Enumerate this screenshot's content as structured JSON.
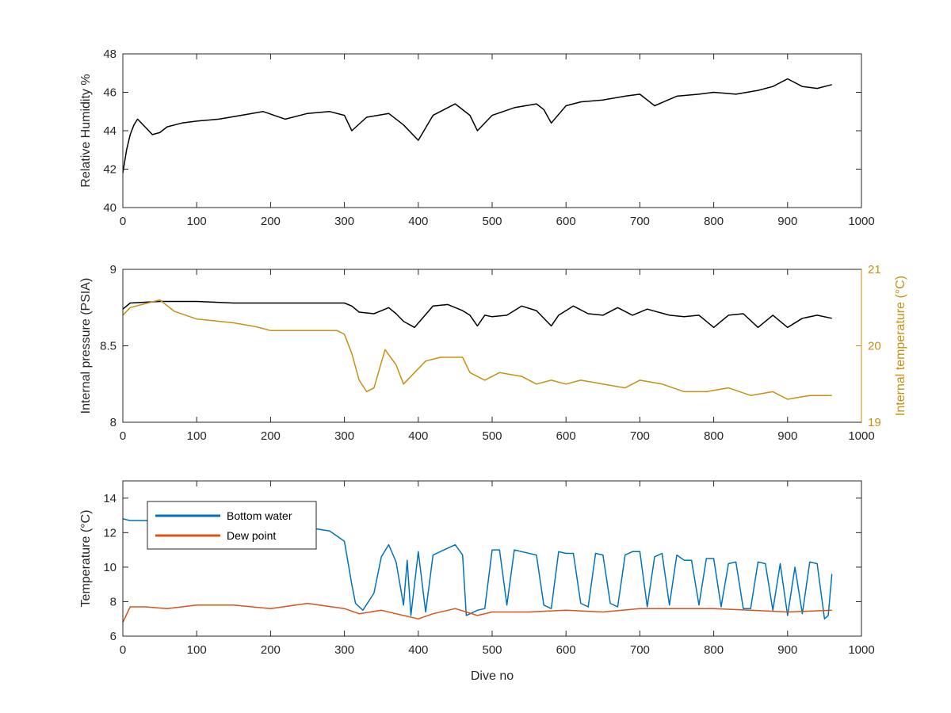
{
  "chart_data": [
    {
      "type": "line",
      "xlabel": "",
      "ylabel": "Relative Humidity %",
      "xlim": [
        0,
        1000
      ],
      "ylim": [
        40,
        48
      ],
      "xticks": [
        "0",
        "100",
        "200",
        "300",
        "400",
        "500",
        "600",
        "700",
        "800",
        "900",
        "1000"
      ],
      "yticks": [
        "40",
        "42",
        "44",
        "46",
        "48"
      ],
      "series": [
        {
          "name": "",
          "color": "#000000",
          "x": [
            0,
            5,
            10,
            15,
            20,
            30,
            40,
            50,
            60,
            80,
            100,
            130,
            160,
            190,
            220,
            250,
            280,
            300,
            310,
            330,
            360,
            380,
            400,
            420,
            450,
            470,
            480,
            500,
            530,
            560,
            570,
            580,
            600,
            620,
            650,
            680,
            700,
            720,
            750,
            780,
            800,
            830,
            860,
            880,
            900,
            920,
            940,
            960
          ],
          "y": [
            41.8,
            43.0,
            43.8,
            44.3,
            44.6,
            44.2,
            43.8,
            43.9,
            44.2,
            44.4,
            44.5,
            44.6,
            44.8,
            45.0,
            44.6,
            44.9,
            45.0,
            44.8,
            44.0,
            44.7,
            44.9,
            44.3,
            43.5,
            44.8,
            45.4,
            44.8,
            44.0,
            44.8,
            45.2,
            45.4,
            45.1,
            44.4,
            45.3,
            45.5,
            45.6,
            45.8,
            45.9,
            45.3,
            45.8,
            45.9,
            46.0,
            45.9,
            46.1,
            46.3,
            46.7,
            46.3,
            46.2,
            46.4
          ]
        }
      ]
    },
    {
      "type": "line",
      "xlabel": "",
      "ylabel": "Internal pressure (PSIA)",
      "ylabel_right": "Internal temperature (°C)",
      "xlim": [
        0,
        1000
      ],
      "ylim": [
        8,
        9
      ],
      "ylim_right": [
        19,
        21
      ],
      "xticks": [
        "0",
        "100",
        "200",
        "300",
        "400",
        "500",
        "600",
        "700",
        "800",
        "900",
        "1000"
      ],
      "yticks": [
        "8",
        "8.5",
        "9"
      ],
      "yticks_right": [
        "19",
        "20",
        "21"
      ],
      "series": [
        {
          "name": "",
          "axis": "left",
          "color": "#000000",
          "x": [
            0,
            10,
            50,
            100,
            150,
            200,
            250,
            300,
            310,
            320,
            340,
            360,
            370,
            380,
            395,
            420,
            440,
            460,
            470,
            480,
            490,
            500,
            520,
            540,
            560,
            580,
            590,
            610,
            630,
            650,
            670,
            690,
            710,
            740,
            760,
            780,
            800,
            820,
            840,
            860,
            880,
            900,
            920,
            940,
            960
          ],
          "y": [
            8.74,
            8.78,
            8.79,
            8.79,
            8.78,
            8.78,
            8.78,
            8.78,
            8.76,
            8.72,
            8.71,
            8.75,
            8.71,
            8.66,
            8.62,
            8.76,
            8.77,
            8.73,
            8.7,
            8.63,
            8.7,
            8.69,
            8.7,
            8.76,
            8.73,
            8.63,
            8.7,
            8.76,
            8.71,
            8.7,
            8.75,
            8.7,
            8.74,
            8.7,
            8.69,
            8.7,
            8.62,
            8.7,
            8.71,
            8.62,
            8.7,
            8.62,
            8.68,
            8.7,
            8.68
          ]
        },
        {
          "name": "",
          "axis": "right",
          "color": "#c88f12",
          "x": [
            0,
            10,
            30,
            50,
            70,
            100,
            150,
            180,
            200,
            230,
            260,
            290,
            300,
            310,
            320,
            330,
            340,
            355,
            370,
            380,
            395,
            410,
            430,
            460,
            470,
            490,
            510,
            540,
            560,
            580,
            600,
            620,
            650,
            680,
            700,
            730,
            760,
            790,
            820,
            850,
            880,
            900,
            930,
            960
          ],
          "y": [
            20.4,
            20.5,
            20.55,
            20.6,
            20.45,
            20.35,
            20.3,
            20.25,
            20.2,
            20.2,
            20.2,
            20.2,
            20.15,
            19.9,
            19.55,
            19.4,
            19.45,
            19.95,
            19.75,
            19.5,
            19.65,
            19.8,
            19.85,
            19.85,
            19.65,
            19.55,
            19.65,
            19.6,
            19.5,
            19.55,
            19.5,
            19.55,
            19.5,
            19.45,
            19.55,
            19.5,
            19.4,
            19.4,
            19.45,
            19.35,
            19.4,
            19.3,
            19.35,
            19.35
          ]
        }
      ]
    },
    {
      "type": "line",
      "xlabel": "Dive no",
      "ylabel": "Temperature (°C)",
      "xlim": [
        0,
        1000
      ],
      "ylim": [
        6,
        15
      ],
      "xticks": [
        "0",
        "100",
        "200",
        "300",
        "400",
        "500",
        "600",
        "700",
        "800",
        "900",
        "1000"
      ],
      "yticks": [
        "6",
        "8",
        "10",
        "12",
        "14"
      ],
      "legend_position": "top-left",
      "series": [
        {
          "name": "Bottom water",
          "color": "#0072bd",
          "x": [
            0,
            10,
            50,
            100,
            150,
            200,
            250,
            280,
            300,
            310,
            315,
            325,
            340,
            350,
            360,
            370,
            380,
            385,
            390,
            400,
            410,
            420,
            450,
            460,
            465,
            480,
            490,
            500,
            510,
            520,
            530,
            540,
            560,
            570,
            580,
            590,
            600,
            610,
            620,
            630,
            640,
            650,
            660,
            670,
            680,
            690,
            700,
            710,
            720,
            730,
            740,
            750,
            760,
            770,
            780,
            790,
            800,
            810,
            820,
            830,
            840,
            850,
            860,
            870,
            880,
            890,
            900,
            910,
            920,
            930,
            940,
            950,
            955,
            960
          ],
          "y": [
            12.8,
            12.7,
            12.7,
            12.7,
            12.5,
            12.3,
            12.3,
            12.1,
            11.5,
            9.0,
            7.9,
            7.5,
            8.5,
            10.6,
            11.3,
            10.3,
            7.8,
            10.4,
            7.2,
            10.9,
            7.4,
            10.7,
            11.3,
            10.7,
            7.2,
            7.5,
            7.6,
            11.0,
            11.0,
            7.8,
            11.0,
            10.9,
            10.7,
            7.8,
            7.6,
            10.9,
            10.8,
            10.8,
            7.9,
            7.7,
            10.8,
            10.7,
            7.9,
            7.7,
            10.7,
            10.9,
            10.9,
            7.7,
            10.6,
            10.8,
            7.8,
            10.7,
            10.4,
            10.4,
            7.8,
            10.5,
            10.5,
            7.7,
            10.2,
            10.3,
            7.6,
            7.6,
            10.3,
            10.2,
            7.5,
            10.2,
            7.2,
            10.0,
            7.3,
            10.3,
            10.2,
            7.0,
            7.2,
            9.6
          ]
        },
        {
          "name": "Dew point",
          "color": "#d95319",
          "x": [
            0,
            10,
            30,
            60,
            100,
            150,
            200,
            250,
            300,
            320,
            350,
            380,
            400,
            420,
            450,
            480,
            500,
            550,
            600,
            650,
            700,
            750,
            800,
            850,
            900,
            960
          ],
          "y": [
            6.8,
            7.7,
            7.7,
            7.6,
            7.8,
            7.8,
            7.6,
            7.9,
            7.6,
            7.3,
            7.5,
            7.2,
            7.0,
            7.3,
            7.6,
            7.2,
            7.4,
            7.4,
            7.5,
            7.4,
            7.6,
            7.6,
            7.6,
            7.5,
            7.4,
            7.5
          ]
        }
      ]
    }
  ]
}
